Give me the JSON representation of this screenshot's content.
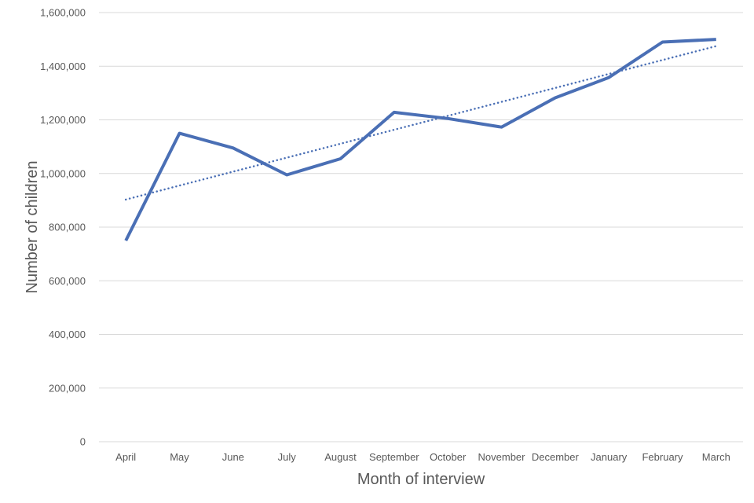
{
  "chart_data": {
    "type": "line",
    "title": "",
    "xlabel": "Month of interview",
    "ylabel": "Number of children",
    "categories": [
      "April",
      "May",
      "June",
      "July",
      "August",
      "September",
      "October",
      "November",
      "December",
      "January",
      "February",
      "March"
    ],
    "series": [
      {
        "values": [
          750000,
          1150000,
          1095000,
          995000,
          1055000,
          1228000,
          1205000,
          1173000,
          1282000,
          1358000,
          1490000,
          1500000
        ],
        "color": "#4a6fb5",
        "style": "solid"
      },
      {
        "trendline": "linear",
        "values": [
          903000,
          955000,
          1007000,
          1059000,
          1111000,
          1163000,
          1215000,
          1267000,
          1319000,
          1371000,
          1423000,
          1475000
        ],
        "color": "#4a6fb5",
        "style": "dotted"
      }
    ],
    "ylim": [
      0,
      1600000
    ],
    "yticks": [
      0,
      200000,
      400000,
      600000,
      800000,
      1000000,
      1200000,
      1400000,
      1600000
    ],
    "ytick_labels": [
      "0",
      "200,000",
      "400,000",
      "600,000",
      "800,000",
      "1,000,000",
      "1,200,000",
      "1,400,000",
      "1,600,000"
    ],
    "grid": true,
    "legend": "none"
  }
}
